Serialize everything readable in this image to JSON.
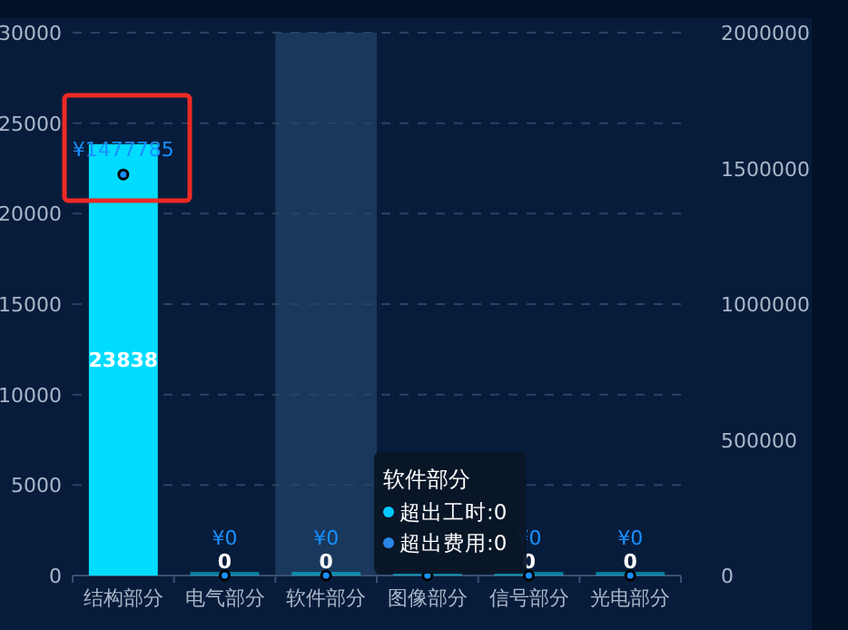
{
  "chart_data": {
    "type": "bar",
    "categories": [
      "结构部分",
      "电气部分",
      "软件部分",
      "图像部分",
      "信号部分",
      "光电部分"
    ],
    "series": [
      {
        "color": "#00dcff",
        "values": [
          23838,
          0,
          0,
          0,
          0,
          0
        ],
        "value_labels": [
          "23838",
          "0",
          "0",
          null,
          "0",
          "0"
        ]
      },
      {
        "type": "scatter",
        "axis": "y2",
        "color": "#1890ff",
        "values": [
          1477785,
          0,
          0,
          0,
          0,
          0
        ],
        "value_labels": [
          "¥1477785",
          "¥0",
          "¥0",
          null,
          "¥0",
          "¥0"
        ]
      }
    ],
    "ylim": [
      0,
      30000
    ],
    "yticks": [
      0,
      5000,
      10000,
      15000,
      20000,
      25000,
      30000
    ],
    "y2lim": [
      0,
      2000000
    ],
    "y2ticks": [
      0,
      500000,
      1000000,
      1500000,
      2000000
    ],
    "grid": "y",
    "marker": "circle",
    "bands": [
      {
        "axis": "x",
        "from": "软件部分",
        "to": "软件部分",
        "color": "#1d3d63"
      }
    ],
    "annotations": [
      "软件部分",
      "超出工时:0",
      "超出费用:0"
    ]
  }
}
